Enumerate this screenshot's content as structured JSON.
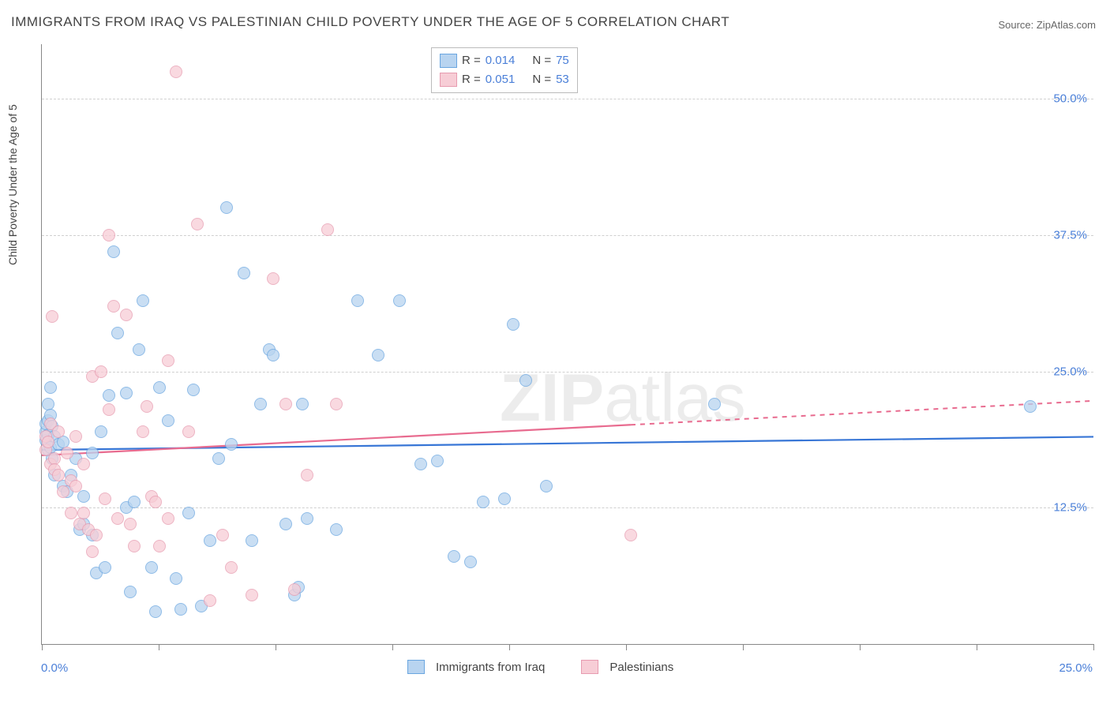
{
  "title": "IMMIGRANTS FROM IRAQ VS PALESTINIAN CHILD POVERTY UNDER THE AGE OF 5 CORRELATION CHART",
  "source": "Source: ZipAtlas.com",
  "watermark_a": "ZIP",
  "watermark_b": "atlas",
  "y_axis_label": "Child Poverty Under the Age of 5",
  "chart": {
    "type": "scatter",
    "xlim": [
      0,
      25
    ],
    "ylim": [
      0,
      55
    ],
    "y_ticks": [
      12.5,
      25.0,
      37.5,
      50.0
    ],
    "y_tick_labels": [
      "12.5%",
      "25.0%",
      "37.5%",
      "50.0%"
    ],
    "x_ticks": [
      0,
      2.78,
      5.56,
      8.33,
      11.11,
      13.89,
      16.67,
      19.44,
      22.22,
      25
    ],
    "x_origin_label": "0.0%",
    "x_max_label": "25.0%",
    "colors": {
      "blue_fill": "#b8d4f0",
      "blue_stroke": "#6aa6e0",
      "pink_fill": "#f7cdd6",
      "pink_stroke": "#e79bb0",
      "blue_line": "#3876d6",
      "pink_line": "#e86b8f",
      "grid": "#d0d0d0",
      "axis": "#888888",
      "text_accent": "#4a7fd8"
    },
    "series": [
      {
        "label": "Immigrants from Iraq",
        "color_key": "blue",
        "r_label_prefix": "R = ",
        "r_value": "0.014",
        "n_label": "N = ",
        "n_value": "75",
        "trend": {
          "x1": 0,
          "y1": 17.8,
          "x2": 25,
          "y2": 19.0,
          "solid_until_x": 25
        },
        "points": [
          [
            0.1,
            19.5
          ],
          [
            0.1,
            20.2
          ],
          [
            0.1,
            18.7
          ],
          [
            0.15,
            20.5
          ],
          [
            0.15,
            17.8
          ],
          [
            0.15,
            22.0
          ],
          [
            0.15,
            19.2
          ],
          [
            0.2,
            21.0
          ],
          [
            0.2,
            18.0
          ],
          [
            0.2,
            23.5
          ],
          [
            0.25,
            20.0
          ],
          [
            0.25,
            17.0
          ],
          [
            0.3,
            19.0
          ],
          [
            0.3,
            15.5
          ],
          [
            0.4,
            18.3
          ],
          [
            0.5,
            14.5
          ],
          [
            0.5,
            18.5
          ],
          [
            0.6,
            14.0
          ],
          [
            0.7,
            15.5
          ],
          [
            0.8,
            17.0
          ],
          [
            0.9,
            10.5
          ],
          [
            1.0,
            11.0
          ],
          [
            1.0,
            13.5
          ],
          [
            1.2,
            10.0
          ],
          [
            1.2,
            17.5
          ],
          [
            1.3,
            6.5
          ],
          [
            1.4,
            19.5
          ],
          [
            1.5,
            7.0
          ],
          [
            1.6,
            22.8
          ],
          [
            1.7,
            36.0
          ],
          [
            1.8,
            28.5
          ],
          [
            2.0,
            23.0
          ],
          [
            2.0,
            12.5
          ],
          [
            2.1,
            4.8
          ],
          [
            2.2,
            13.0
          ],
          [
            2.3,
            27.0
          ],
          [
            2.4,
            31.5
          ],
          [
            2.6,
            7.0
          ],
          [
            2.7,
            3.0
          ],
          [
            2.8,
            23.5
          ],
          [
            3.0,
            20.5
          ],
          [
            3.2,
            6.0
          ],
          [
            3.3,
            3.2
          ],
          [
            3.5,
            12.0
          ],
          [
            3.6,
            23.3
          ],
          [
            4.0,
            9.5
          ],
          [
            4.2,
            17.0
          ],
          [
            4.4,
            40.0
          ],
          [
            4.5,
            18.3
          ],
          [
            4.8,
            34.0
          ],
          [
            5.0,
            9.5
          ],
          [
            5.2,
            22.0
          ],
          [
            5.4,
            27.0
          ],
          [
            5.5,
            26.5
          ],
          [
            5.8,
            11.0
          ],
          [
            6.0,
            4.5
          ],
          [
            6.1,
            5.2
          ],
          [
            6.2,
            22.0
          ],
          [
            6.3,
            11.5
          ],
          [
            7.0,
            10.5
          ],
          [
            7.5,
            31.5
          ],
          [
            8.0,
            26.5
          ],
          [
            8.5,
            31.5
          ],
          [
            9.0,
            16.5
          ],
          [
            9.4,
            16.8
          ],
          [
            9.8,
            8.0
          ],
          [
            10.2,
            7.5
          ],
          [
            10.5,
            13.0
          ],
          [
            11.0,
            13.3
          ],
          [
            11.2,
            29.3
          ],
          [
            11.5,
            24.2
          ],
          [
            12.0,
            14.5
          ],
          [
            16.0,
            22.0
          ],
          [
            23.5,
            21.8
          ],
          [
            3.8,
            3.5
          ]
        ]
      },
      {
        "label": "Palestinians",
        "color_key": "pink",
        "r_label_prefix": "R = ",
        "r_value": "0.051",
        "n_label": "N = ",
        "n_value": "53",
        "trend": {
          "x1": 0,
          "y1": 17.3,
          "x2": 25,
          "y2": 22.3,
          "solid_until_x": 14
        },
        "points": [
          [
            0.1,
            17.8
          ],
          [
            0.1,
            19.0
          ],
          [
            0.15,
            18.5
          ],
          [
            0.2,
            20.2
          ],
          [
            0.2,
            16.5
          ],
          [
            0.25,
            30.0
          ],
          [
            0.3,
            17.0
          ],
          [
            0.3,
            16.0
          ],
          [
            0.4,
            15.5
          ],
          [
            0.4,
            19.5
          ],
          [
            0.5,
            14.0
          ],
          [
            0.6,
            17.5
          ],
          [
            0.7,
            15.0
          ],
          [
            0.7,
            12.0
          ],
          [
            0.8,
            14.5
          ],
          [
            0.8,
            19.0
          ],
          [
            0.9,
            11.0
          ],
          [
            1.0,
            16.5
          ],
          [
            1.0,
            12.0
          ],
          [
            1.1,
            10.5
          ],
          [
            1.2,
            24.5
          ],
          [
            1.2,
            8.5
          ],
          [
            1.3,
            10.0
          ],
          [
            1.4,
            25.0
          ],
          [
            1.5,
            13.3
          ],
          [
            1.6,
            21.5
          ],
          [
            1.6,
            37.5
          ],
          [
            1.7,
            31.0
          ],
          [
            1.8,
            11.5
          ],
          [
            2.0,
            30.2
          ],
          [
            2.1,
            11.0
          ],
          [
            2.2,
            9.0
          ],
          [
            2.4,
            19.5
          ],
          [
            2.5,
            21.8
          ],
          [
            2.6,
            13.5
          ],
          [
            2.7,
            13.0
          ],
          [
            2.8,
            9.0
          ],
          [
            3.0,
            11.5
          ],
          [
            3.0,
            26.0
          ],
          [
            3.2,
            52.5
          ],
          [
            3.5,
            19.5
          ],
          [
            3.7,
            38.5
          ],
          [
            4.0,
            4.0
          ],
          [
            4.3,
            10.0
          ],
          [
            4.5,
            7.0
          ],
          [
            5.0,
            4.5
          ],
          [
            5.5,
            33.5
          ],
          [
            5.8,
            22.0
          ],
          [
            6.0,
            5.0
          ],
          [
            6.3,
            15.5
          ],
          [
            6.8,
            38.0
          ],
          [
            7.0,
            22.0
          ],
          [
            14.0,
            10.0
          ]
        ]
      }
    ]
  }
}
